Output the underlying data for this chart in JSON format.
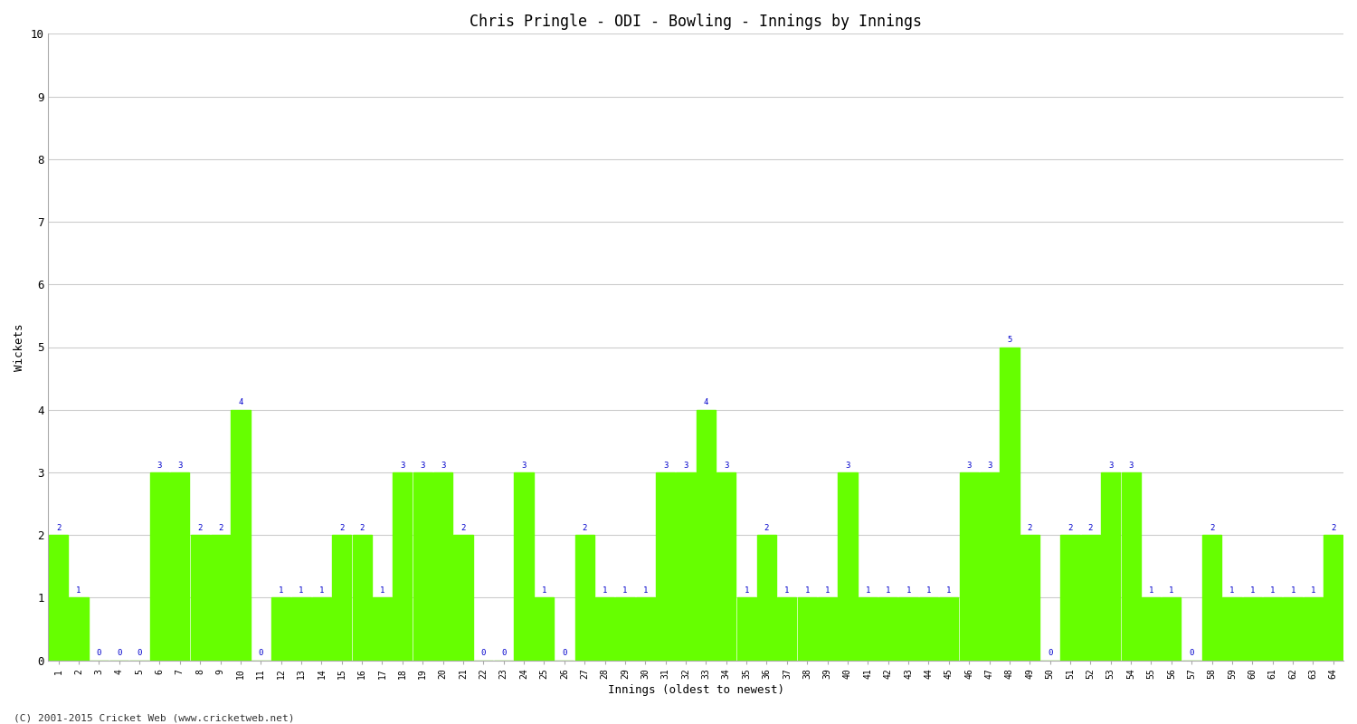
{
  "title": "Chris Pringle - ODI - Bowling - Innings by Innings",
  "xlabel": "Innings (oldest to newest)",
  "ylabel": "Wickets",
  "bar_color": "#66ff00",
  "label_color": "#0000cc",
  "background_color": "#ffffff",
  "grid_color": "#cccccc",
  "ylim": [
    0,
    10
  ],
  "yticks": [
    0,
    1,
    2,
    3,
    4,
    5,
    6,
    7,
    8,
    9,
    10
  ],
  "categories": [
    1,
    2,
    3,
    4,
    5,
    6,
    7,
    8,
    9,
    10,
    11,
    12,
    13,
    14,
    15,
    16,
    17,
    18,
    19,
    20,
    21,
    22,
    23,
    24,
    25,
    26,
    27,
    28,
    29,
    30,
    31,
    32,
    33,
    34,
    35,
    36,
    37,
    38,
    39,
    40,
    41,
    42,
    43,
    44,
    45,
    46,
    47,
    48,
    49,
    50,
    51,
    52,
    53,
    54,
    55,
    56,
    57,
    58,
    59,
    60,
    61,
    62,
    63,
    64
  ],
  "values": [
    2,
    1,
    0,
    0,
    0,
    3,
    3,
    2,
    2,
    4,
    0,
    1,
    1,
    1,
    2,
    2,
    1,
    3,
    3,
    3,
    2,
    0,
    0,
    3,
    1,
    0,
    2,
    1,
    1,
    1,
    3,
    3,
    4,
    3,
    1,
    2,
    1,
    1,
    1,
    3,
    1,
    1,
    1,
    1,
    1,
    3,
    3,
    5,
    2,
    0,
    2,
    2,
    3,
    3,
    1,
    1,
    0,
    2,
    1,
    1,
    1,
    1,
    1,
    2
  ],
  "footnote": "(C) 2001-2015 Cricket Web (www.cricketweb.net)"
}
